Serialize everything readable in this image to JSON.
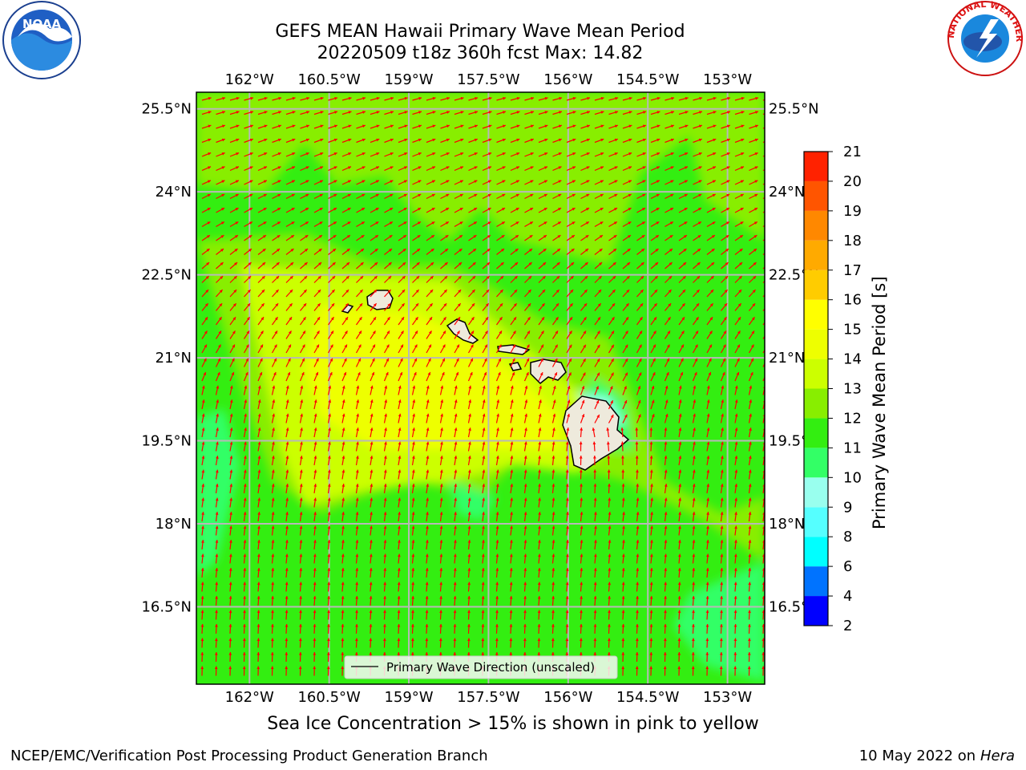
{
  "title": {
    "line1": "GEFS MEAN Hawaii Primary Wave Mean Period",
    "line2": "20220509 t18z 360h fcst   Max: 14.82"
  },
  "map": {
    "lon_ticks": [
      "162°W",
      "160.5°W",
      "159°W",
      "157.5°W",
      "156°W",
      "154.5°W",
      "153°W"
    ],
    "lat_ticks": [
      "25.5°N",
      "24°N",
      "22.5°N",
      "21°N",
      "19.5°N",
      "18°N",
      "16.5°N"
    ],
    "lon_range": [
      -163.0,
      -152.3
    ],
    "lat_range": [
      15.1,
      25.8
    ],
    "legend_label": "Primary Wave Direction (unscaled)",
    "arrow_color": "#ff0000",
    "grid_color": "#b8b8b8",
    "land_color": "#eeeadc"
  },
  "colorbar": {
    "label": "Primary Wave Mean Period [s]",
    "levels": [
      "2",
      "4",
      "6",
      "8",
      "9",
      "10",
      "11",
      "12",
      "13",
      "14",
      "15",
      "16",
      "17",
      "18",
      "19",
      "20",
      "21"
    ],
    "colors": [
      "#0000ff",
      "#0073ff",
      "#00ffff",
      "#55ffff",
      "#99ffee",
      "#33ff66",
      "#33ee11",
      "#88ee00",
      "#ccff00",
      "#eeff00",
      "#ffff00",
      "#ffcc00",
      "#ffaa00",
      "#ff8800",
      "#ff5500",
      "#ff2200"
    ]
  },
  "notes": {
    "ice": "Sea Ice Concentration > 15% is shown in pink to yellow",
    "org": "NCEP/EMC/Verification Post Processing Product Generation Branch",
    "date": "10 May 2022 on",
    "machine": "Hera"
  },
  "logos": {
    "left": "NOAA",
    "right_ring": "NATIONAL WEATHER SERVICE"
  }
}
